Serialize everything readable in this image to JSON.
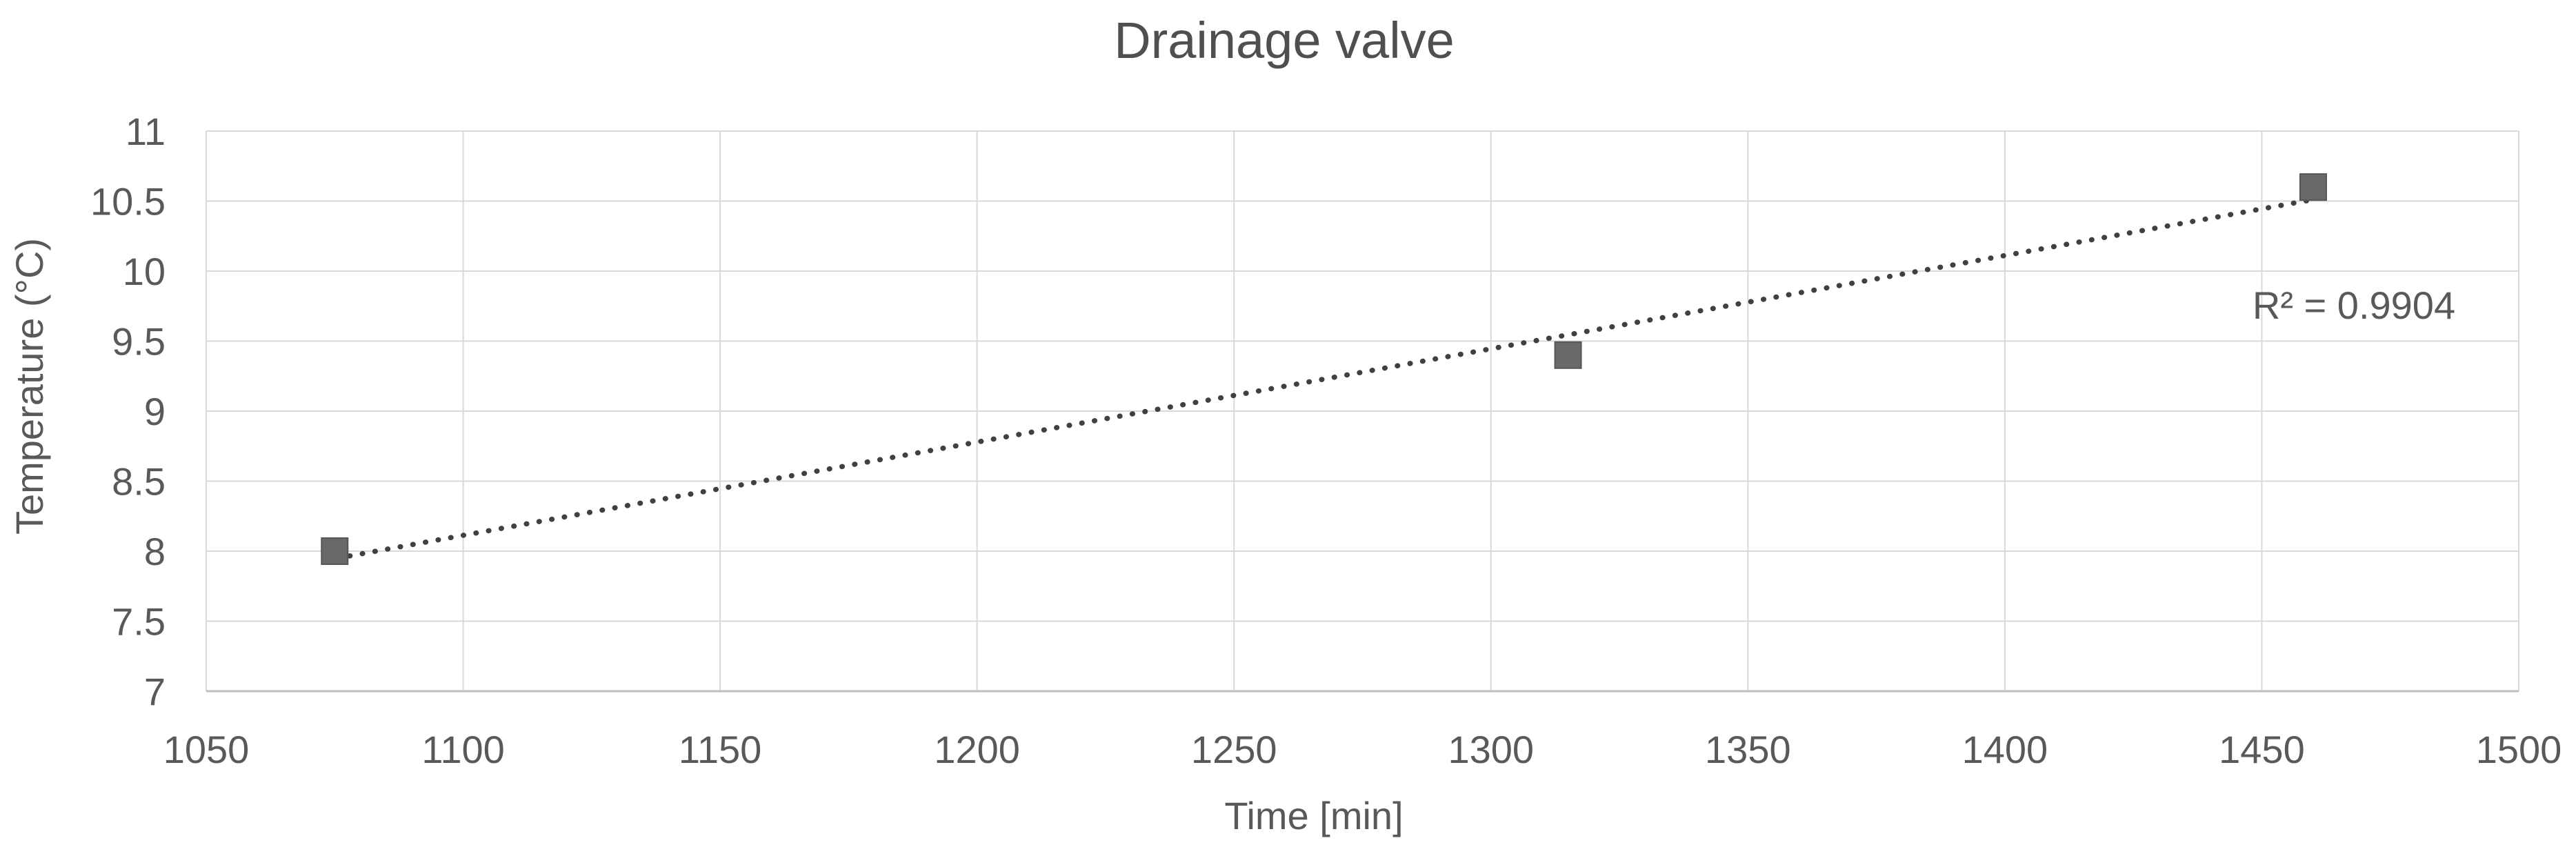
{
  "chart": {
    "title": "Drainage valve"
  },
  "chart_data": {
    "type": "scatter",
    "title": "Drainage valve",
    "xlabel": "Time [min]",
    "ylabel": "Temperature (°C)",
    "xlim": [
      1050,
      1500
    ],
    "ylim": [
      7,
      11
    ],
    "x_ticks": [
      1050,
      1100,
      1150,
      1200,
      1250,
      1300,
      1350,
      1400,
      1450,
      1500
    ],
    "y_ticks": [
      7,
      7.5,
      8,
      8.5,
      9,
      9.5,
      10,
      10.5,
      11
    ],
    "grid": true,
    "legend": false,
    "series": [
      {
        "name": "Temperature",
        "marker": "square",
        "points": [
          {
            "x": 1075,
            "y": 8.0
          },
          {
            "x": 1315,
            "y": 9.4
          },
          {
            "x": 1460,
            "y": 10.6
          }
        ]
      }
    ],
    "trendline": {
      "type": "linear",
      "style": "dotted",
      "slope": 0.006661,
      "intercept": 0.7857,
      "x_start": 1073,
      "x_end": 1461,
      "r_squared": 0.9904,
      "label": "R² = 0.9904"
    },
    "colors": {
      "marker_fill": "#696969",
      "marker_border": "#565656",
      "trendline": "#404040",
      "gridline": "#d9d9d9",
      "axis_line": "#bfbfbf",
      "text": "#595959"
    }
  }
}
